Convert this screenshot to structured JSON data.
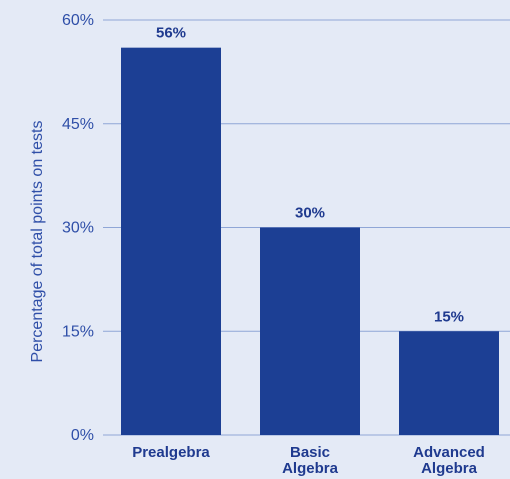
{
  "chart_data": {
    "type": "bar",
    "categories": [
      [
        "Prealgebra"
      ],
      [
        "Basic",
        "Algebra"
      ],
      [
        "Advanced",
        "Algebra"
      ]
    ],
    "values": [
      56,
      30,
      15
    ],
    "value_labels": [
      "56%",
      "30%",
      "15%"
    ],
    "ylabel": "Percentage of total points on tests",
    "ylim": [
      0,
      60
    ],
    "yticks": [
      0,
      15,
      30,
      45,
      60
    ],
    "ytick_labels": [
      "0%",
      "15%",
      "30%",
      "45%",
      "60%"
    ],
    "grid": true,
    "legend": "none"
  },
  "colors": {
    "background": "#e4eaf6",
    "bar": "#1c3f94",
    "gridline": "#8fa6d6",
    "text": "#1f3a8f",
    "tick_text": "#2f4fa8"
  }
}
